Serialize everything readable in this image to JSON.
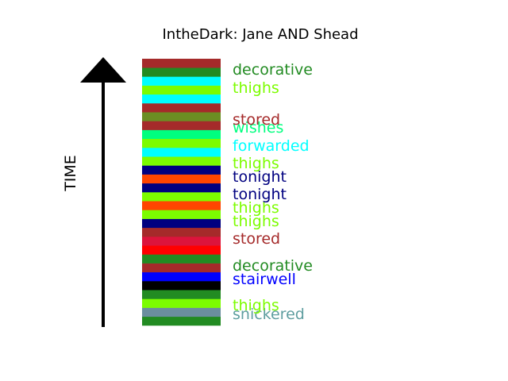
{
  "chart_data": {
    "type": "bar",
    "title": "IntheDark: Jane AND Shead",
    "ylabel": "TIME",
    "orientation": "stacked-strip",
    "segments": [
      {
        "color": "#228b22"
      },
      {
        "color": "#6b8e9f"
      },
      {
        "color": "#7cfc00"
      },
      {
        "color": "#228b22"
      },
      {
        "color": "#000000"
      },
      {
        "color": "#0000ff"
      },
      {
        "color": "#a52a2a"
      },
      {
        "color": "#228b22"
      },
      {
        "color": "#ff0000"
      },
      {
        "color": "#dc143c"
      },
      {
        "color": "#a52a2a"
      },
      {
        "color": "#000080"
      },
      {
        "color": "#7cfc00"
      },
      {
        "color": "#ff4500"
      },
      {
        "color": "#7cfc00"
      },
      {
        "color": "#000080"
      },
      {
        "color": "#ff4500"
      },
      {
        "color": "#000080"
      },
      {
        "color": "#7cfc00"
      },
      {
        "color": "#00ffff"
      },
      {
        "color": "#7cfc00"
      },
      {
        "color": "#00ff7f"
      },
      {
        "color": "#a52a2a"
      },
      {
        "color": "#6b8e23"
      },
      {
        "color": "#a52a2a"
      },
      {
        "color": "#00ffff"
      },
      {
        "color": "#7cfc00"
      },
      {
        "color": "#00ffff"
      },
      {
        "color": "#228b22"
      },
      {
        "color": "#a52a2a"
      }
    ],
    "labels": [
      {
        "text": "snickered",
        "color": "#5f9ea0"
      },
      {
        "text": "thighs",
        "color": "#7cfc00"
      },
      {
        "text": "stairwell",
        "color": "#0000ff"
      },
      {
        "text": "decorative",
        "color": "#228b22"
      },
      {
        "text": "stored",
        "color": "#a52a2a"
      },
      {
        "text": "thighs",
        "color": "#7cfc00"
      },
      {
        "text": "thighs",
        "color": "#7cfc00"
      },
      {
        "text": "tonight",
        "color": "#000080"
      },
      {
        "text": "tonight",
        "color": "#000080"
      },
      {
        "text": "thighs",
        "color": "#7cfc00"
      },
      {
        "text": "forwarded",
        "color": "#00ffff"
      },
      {
        "text": "wishes",
        "color": "#00ff7f"
      },
      {
        "text": "stored",
        "color": "#a52a2a"
      },
      {
        "text": "thighs",
        "color": "#7cfc00"
      },
      {
        "text": "decorative",
        "color": "#228b22"
      }
    ]
  }
}
